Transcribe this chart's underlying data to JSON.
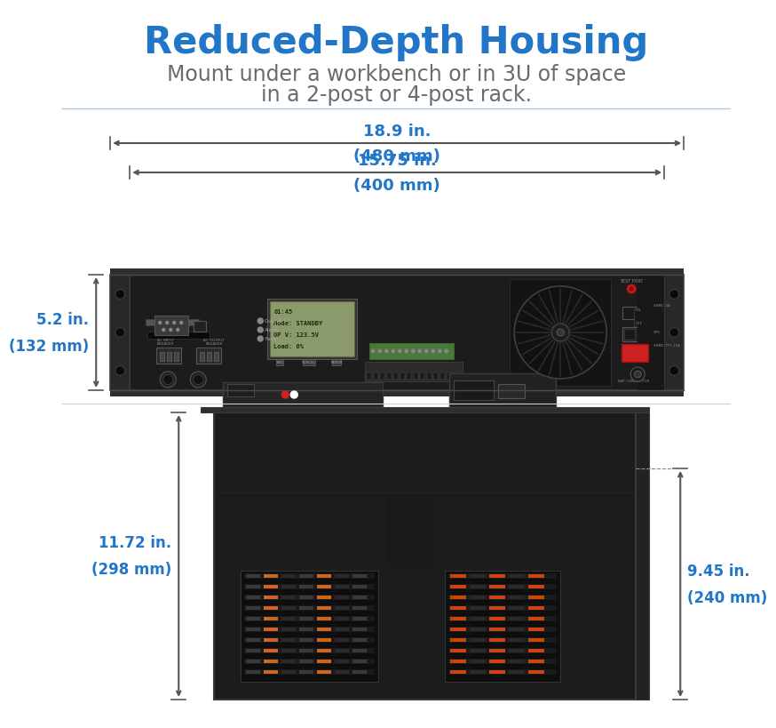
{
  "title": "Reduced-Depth Housing",
  "subtitle_line1": "Mount under a workbench or in 3U of space",
  "subtitle_line2": "in a 2-post or 4-post rack.",
  "title_color": "#2176c7",
  "subtitle_color": "#6b6b6b",
  "title_fontsize": 30,
  "subtitle_fontsize": 17,
  "dim_color": "#2176c7",
  "dim_fontsize": 12,
  "arrow_color": "#555555",
  "bg_color": "#ffffff",
  "dims": {
    "width_total_in": "18.9 in.",
    "width_total_mm": "(480 mm)",
    "width_inner_in": "15.75 in.",
    "width_inner_mm": "(400 mm)",
    "height_front_in": "5.2 in.",
    "height_front_mm": "(132 mm)",
    "depth_total_in": "11.72 in.",
    "depth_total_mm": "(298 mm)",
    "depth_inner_in": "9.45 in.",
    "depth_inner_mm": "(240 mm)"
  }
}
